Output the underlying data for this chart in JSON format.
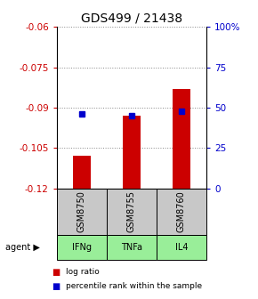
{
  "title": "GDS499 / 21438",
  "samples": [
    "GSM8750",
    "GSM8755",
    "GSM8760"
  ],
  "agents": [
    "IFNg",
    "TNFa",
    "IL4"
  ],
  "log_ratios": [
    -0.108,
    -0.093,
    -0.083
  ],
  "percentile_ranks": [
    46,
    45,
    48
  ],
  "ylim_left": [
    -0.12,
    -0.06
  ],
  "ylim_right": [
    0,
    100
  ],
  "yticks_left": [
    -0.12,
    -0.105,
    -0.09,
    -0.075,
    -0.06
  ],
  "yticks_right": [
    0,
    25,
    50,
    75,
    100
  ],
  "ytick_labels_left": [
    "-0.12",
    "-0.105",
    "-0.09",
    "-0.075",
    "-0.06"
  ],
  "ytick_labels_right": [
    "0",
    "25",
    "50",
    "75",
    "100%"
  ],
  "bar_color": "#cc0000",
  "dot_color": "#0000cc",
  "sample_box_color": "#c8c8c8",
  "agent_box_color": "#99ee99",
  "bg_color": "#ffffff",
  "title_fontsize": 10,
  "tick_fontsize": 7.5,
  "label_fontsize": 7,
  "legend_fontsize": 6.5,
  "bar_width": 0.35
}
